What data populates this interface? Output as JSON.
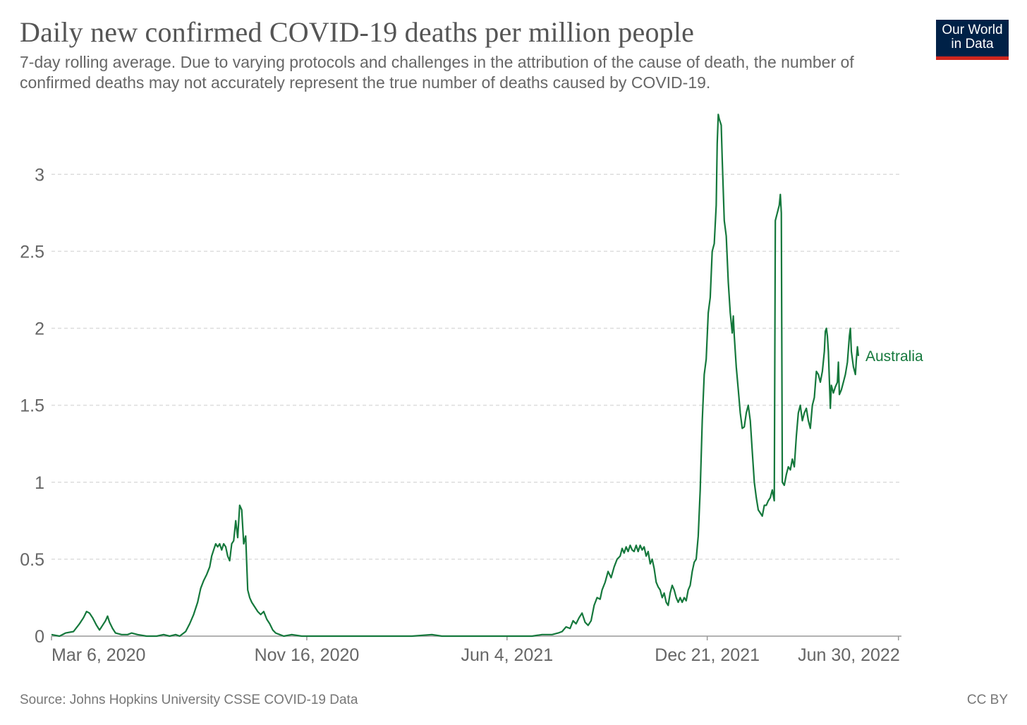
{
  "header": {
    "title": "Daily new confirmed COVID-19 deaths per million people",
    "subtitle": "7-day rolling average. Due to varying protocols and challenges in the attribution of the cause of death, the number of confirmed deaths may not accurately represent the true number of deaths caused by COVID-19."
  },
  "logo": {
    "line1": "Our World",
    "line2": "in Data",
    "bg_color": "#002147",
    "accent_color": "#ce261e"
  },
  "footer": {
    "source": "Source: Johns Hopkins University CSSE COVID-19 Data",
    "license": "CC BY"
  },
  "colors": {
    "series": "#15783c",
    "grid": "#dddddd",
    "axis": "#999999",
    "tick_text": "#666666"
  },
  "chart_data": {
    "type": "line",
    "title": "Daily new confirmed COVID-19 deaths per million people",
    "xlabel": "",
    "ylabel": "",
    "ylim": [
      0,
      3.4
    ],
    "y_ticks": [
      0,
      0.5,
      1,
      1.5,
      2,
      2.5,
      3
    ],
    "y_tick_labels": [
      "0",
      "0.5",
      "1",
      "1.5",
      "2",
      "2.5",
      "3"
    ],
    "x_range_days": [
      0,
      849
    ],
    "x_ticks": [
      {
        "day": 0,
        "label": "Mar 6, 2020"
      },
      {
        "day": 255,
        "label": "Nov 16, 2020"
      },
      {
        "day": 455,
        "label": "Jun 4, 2021"
      },
      {
        "day": 655,
        "label": "Dec 21, 2021"
      },
      {
        "day": 846,
        "label": "Jun 30, 2022"
      }
    ],
    "grid": true,
    "series": [
      {
        "name": "Australia",
        "points": [
          [
            0,
            0.01
          ],
          [
            8,
            0.0
          ],
          [
            14,
            0.02
          ],
          [
            22,
            0.03
          ],
          [
            28,
            0.08
          ],
          [
            32,
            0.12
          ],
          [
            35,
            0.16
          ],
          [
            38,
            0.15
          ],
          [
            41,
            0.12
          ],
          [
            45,
            0.07
          ],
          [
            48,
            0.04
          ],
          [
            51,
            0.07
          ],
          [
            54,
            0.1
          ],
          [
            56,
            0.13
          ],
          [
            58,
            0.09
          ],
          [
            61,
            0.05
          ],
          [
            64,
            0.02
          ],
          [
            70,
            0.01
          ],
          [
            76,
            0.01
          ],
          [
            80,
            0.02
          ],
          [
            86,
            0.01
          ],
          [
            95,
            0.0
          ],
          [
            105,
            0.0
          ],
          [
            112,
            0.01
          ],
          [
            118,
            0.0
          ],
          [
            124,
            0.01
          ],
          [
            128,
            0.0
          ],
          [
            134,
            0.03
          ],
          [
            138,
            0.08
          ],
          [
            142,
            0.14
          ],
          [
            146,
            0.22
          ],
          [
            149,
            0.31
          ],
          [
            152,
            0.36
          ],
          [
            155,
            0.4
          ],
          [
            158,
            0.45
          ],
          [
            160,
            0.52
          ],
          [
            162,
            0.56
          ],
          [
            164,
            0.6
          ],
          [
            166,
            0.58
          ],
          [
            168,
            0.6
          ],
          [
            170,
            0.56
          ],
          [
            172,
            0.6
          ],
          [
            174,
            0.58
          ],
          [
            176,
            0.52
          ],
          [
            178,
            0.49
          ],
          [
            180,
            0.6
          ],
          [
            182,
            0.62
          ],
          [
            184,
            0.75
          ],
          [
            186,
            0.64
          ],
          [
            188,
            0.85
          ],
          [
            190,
            0.82
          ],
          [
            192,
            0.6
          ],
          [
            194,
            0.65
          ],
          [
            196,
            0.3
          ],
          [
            198,
            0.25
          ],
          [
            200,
            0.22
          ],
          [
            203,
            0.19
          ],
          [
            206,
            0.16
          ],
          [
            209,
            0.14
          ],
          [
            212,
            0.16
          ],
          [
            215,
            0.11
          ],
          [
            218,
            0.08
          ],
          [
            221,
            0.04
          ],
          [
            224,
            0.02
          ],
          [
            228,
            0.01
          ],
          [
            232,
            0.0
          ],
          [
            240,
            0.01
          ],
          [
            250,
            0.0
          ],
          [
            270,
            0.0
          ],
          [
            300,
            0.0
          ],
          [
            330,
            0.0
          ],
          [
            360,
            0.0
          ],
          [
            380,
            0.01
          ],
          [
            390,
            0.0
          ],
          [
            420,
            0.0
          ],
          [
            450,
            0.0
          ],
          [
            480,
            0.0
          ],
          [
            490,
            0.01
          ],
          [
            500,
            0.01
          ],
          [
            506,
            0.02
          ],
          [
            510,
            0.03
          ],
          [
            514,
            0.06
          ],
          [
            518,
            0.05
          ],
          [
            521,
            0.1
          ],
          [
            524,
            0.08
          ],
          [
            527,
            0.12
          ],
          [
            530,
            0.15
          ],
          [
            533,
            0.09
          ],
          [
            536,
            0.07
          ],
          [
            539,
            0.1
          ],
          [
            542,
            0.2
          ],
          [
            545,
            0.25
          ],
          [
            548,
            0.24
          ],
          [
            550,
            0.3
          ],
          [
            553,
            0.35
          ],
          [
            556,
            0.42
          ],
          [
            559,
            0.38
          ],
          [
            562,
            0.45
          ],
          [
            565,
            0.5
          ],
          [
            568,
            0.52
          ],
          [
            570,
            0.57
          ],
          [
            572,
            0.54
          ],
          [
            574,
            0.58
          ],
          [
            576,
            0.55
          ],
          [
            578,
            0.59
          ],
          [
            580,
            0.56
          ],
          [
            582,
            0.55
          ],
          [
            584,
            0.59
          ],
          [
            586,
            0.55
          ],
          [
            588,
            0.59
          ],
          [
            590,
            0.56
          ],
          [
            592,
            0.58
          ],
          [
            594,
            0.52
          ],
          [
            596,
            0.55
          ],
          [
            598,
            0.47
          ],
          [
            600,
            0.5
          ],
          [
            602,
            0.44
          ],
          [
            604,
            0.35
          ],
          [
            606,
            0.32
          ],
          [
            608,
            0.3
          ],
          [
            610,
            0.25
          ],
          [
            612,
            0.28
          ],
          [
            614,
            0.22
          ],
          [
            616,
            0.2
          ],
          [
            618,
            0.28
          ],
          [
            620,
            0.33
          ],
          [
            622,
            0.3
          ],
          [
            624,
            0.25
          ],
          [
            626,
            0.22
          ],
          [
            628,
            0.25
          ],
          [
            630,
            0.22
          ],
          [
            632,
            0.25
          ],
          [
            634,
            0.23
          ],
          [
            636,
            0.3
          ],
          [
            638,
            0.33
          ],
          [
            640,
            0.42
          ],
          [
            642,
            0.48
          ],
          [
            644,
            0.5
          ],
          [
            646,
            0.65
          ],
          [
            648,
            0.95
          ],
          [
            650,
            1.4
          ],
          [
            652,
            1.7
          ],
          [
            654,
            1.8
          ],
          [
            656,
            2.1
          ],
          [
            658,
            2.2
          ],
          [
            660,
            2.5
          ],
          [
            662,
            2.55
          ],
          [
            664,
            2.8
          ],
          [
            665,
            3.2
          ],
          [
            666,
            3.39
          ],
          [
            667,
            3.36
          ],
          [
            669,
            3.32
          ],
          [
            670,
            3.1
          ],
          [
            672,
            2.7
          ],
          [
            674,
            2.6
          ],
          [
            676,
            2.3
          ],
          [
            678,
            2.1
          ],
          [
            680,
            1.97
          ],
          [
            681,
            2.08
          ],
          [
            682,
            1.95
          ],
          [
            684,
            1.75
          ],
          [
            686,
            1.6
          ],
          [
            688,
            1.45
          ],
          [
            690,
            1.35
          ],
          [
            692,
            1.36
          ],
          [
            694,
            1.45
          ],
          [
            696,
            1.5
          ],
          [
            698,
            1.4
          ],
          [
            700,
            1.2
          ],
          [
            702,
            1.0
          ],
          [
            704,
            0.9
          ],
          [
            706,
            0.82
          ],
          [
            708,
            0.8
          ],
          [
            710,
            0.78
          ],
          [
            712,
            0.85
          ],
          [
            714,
            0.85
          ],
          [
            716,
            0.88
          ],
          [
            718,
            0.9
          ],
          [
            720,
            0.95
          ],
          [
            722,
            0.88
          ],
          [
            723,
            2.7
          ],
          [
            725,
            2.75
          ],
          [
            727,
            2.8
          ],
          [
            728,
            2.87
          ],
          [
            729,
            2.75
          ],
          [
            730,
            1.0
          ],
          [
            732,
            0.98
          ],
          [
            734,
            1.05
          ],
          [
            736,
            1.1
          ],
          [
            738,
            1.08
          ],
          [
            740,
            1.15
          ],
          [
            742,
            1.1
          ],
          [
            744,
            1.3
          ],
          [
            746,
            1.45
          ],
          [
            748,
            1.5
          ],
          [
            750,
            1.4
          ],
          [
            752,
            1.45
          ],
          [
            754,
            1.48
          ],
          [
            756,
            1.4
          ],
          [
            758,
            1.35
          ],
          [
            760,
            1.5
          ],
          [
            762,
            1.55
          ],
          [
            764,
            1.72
          ],
          [
            766,
            1.7
          ],
          [
            768,
            1.65
          ],
          [
            770,
            1.72
          ],
          [
            772,
            1.85
          ],
          [
            773,
            1.98
          ],
          [
            774,
            2.0
          ],
          [
            775,
            1.95
          ],
          [
            776,
            1.85
          ],
          [
            778,
            1.48
          ],
          [
            779,
            1.63
          ],
          [
            781,
            1.58
          ],
          [
            783,
            1.62
          ],
          [
            785,
            1.65
          ],
          [
            786,
            1.78
          ],
          [
            787,
            1.57
          ],
          [
            789,
            1.6
          ],
          [
            791,
            1.65
          ],
          [
            793,
            1.7
          ],
          [
            795,
            1.78
          ],
          [
            797,
            1.95
          ],
          [
            798,
            2.0
          ],
          [
            799,
            1.85
          ],
          [
            801,
            1.75
          ],
          [
            803,
            1.7
          ],
          [
            804,
            1.8
          ],
          [
            805,
            1.88
          ],
          [
            806,
            1.82
          ]
        ]
      }
    ],
    "series_label": "Australia",
    "legend": "inline-end-label"
  }
}
